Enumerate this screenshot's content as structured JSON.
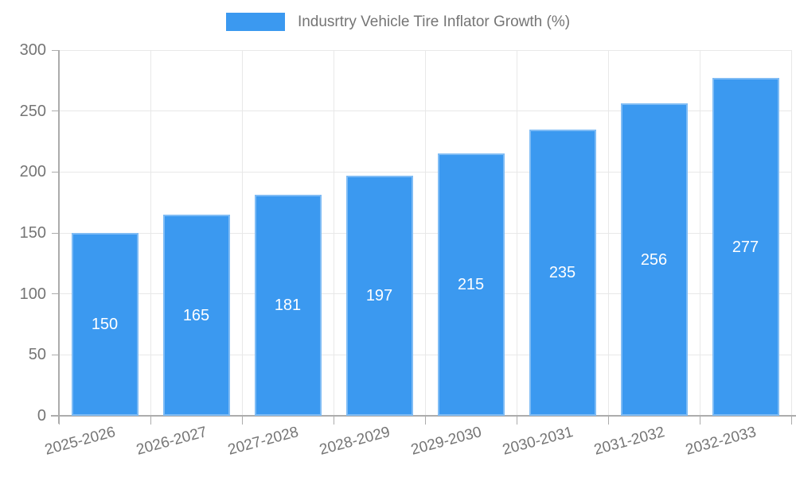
{
  "chart_data": {
    "type": "bar",
    "title": "",
    "legend": {
      "label": "Indusrtry Vehicle Tire Inflator Growth (%)",
      "position": "top-center"
    },
    "categories": [
      "2025-2026",
      "2026-2027",
      "2027-2028",
      "2028-2029",
      "2029-2030",
      "2030-2031",
      "2031-2032",
      "2032-2033"
    ],
    "values": [
      150,
      165,
      181,
      197,
      215,
      235,
      256,
      277
    ],
    "xlabel": "",
    "ylabel": "",
    "ylim": [
      0,
      300
    ],
    "yticks": [
      0,
      50,
      100,
      150,
      200,
      250,
      300
    ],
    "grid": true,
    "x_label_rotation_deg": -15,
    "colors": {
      "bar": "#3B99F0",
      "bar_value_label": "#FFFFFF",
      "axis_text": "#757575",
      "grid_line": "#E8E8E8",
      "axis_line": "#ACACAC"
    }
  }
}
